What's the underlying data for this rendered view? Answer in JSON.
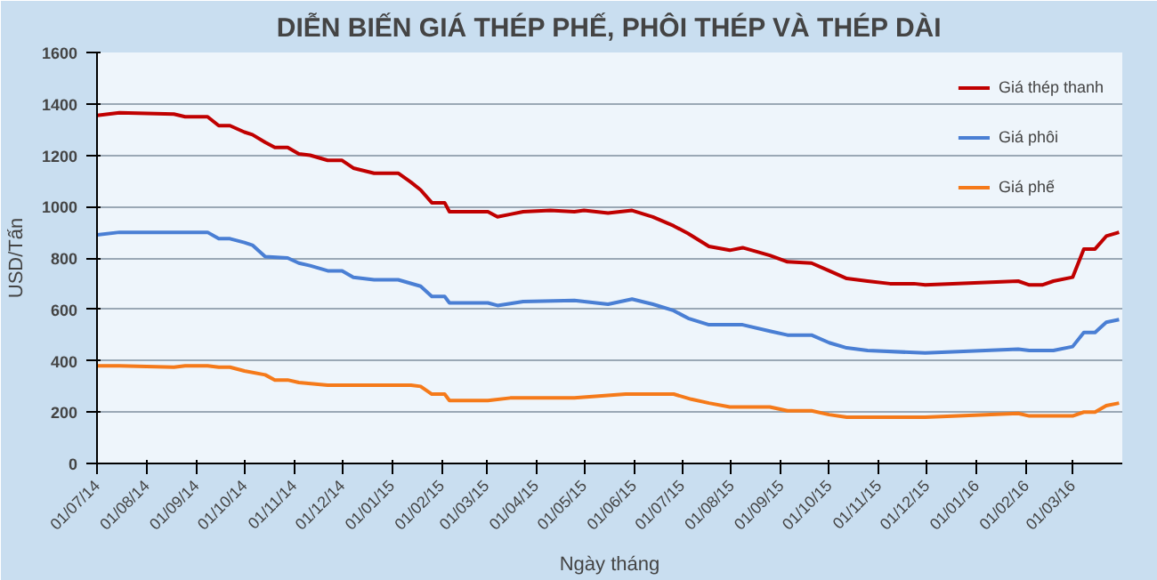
{
  "chart_data": {
    "type": "line",
    "title": "DIỄN BIẾN GIÁ THÉP PHẾ, PHÔI THÉP VÀ THÉP DÀI",
    "xlabel": "Ngày tháng",
    "ylabel": "USD/Tấn",
    "xlim": [
      "2014-07-01",
      "2016-04-01"
    ],
    "xticks": [
      {
        "value": "2014-07-01",
        "label": "01/07/14"
      },
      {
        "value": "2014-08-01",
        "label": "01/08/14"
      },
      {
        "value": "2014-09-01",
        "label": "01/09/14"
      },
      {
        "value": "2014-10-01",
        "label": "01/10/14"
      },
      {
        "value": "2014-11-01",
        "label": "01/11/14"
      },
      {
        "value": "2014-12-01",
        "label": "01/12/14"
      },
      {
        "value": "2015-01-01",
        "label": "01/01/15"
      },
      {
        "value": "2015-02-01",
        "label": "01/02/15"
      },
      {
        "value": "2015-03-01",
        "label": "01/03/15"
      },
      {
        "value": "2015-04-01",
        "label": "01/04/15"
      },
      {
        "value": "2015-05-01",
        "label": "01/05/15"
      },
      {
        "value": "2015-06-01",
        "label": "01/06/15"
      },
      {
        "value": "2015-07-01",
        "label": "01/07/15"
      },
      {
        "value": "2015-08-01",
        "label": "01/08/15"
      },
      {
        "value": "2015-09-01",
        "label": "01/09/15"
      },
      {
        "value": "2015-10-01",
        "label": "01/10/15"
      },
      {
        "value": "2015-11-01",
        "label": "01/11/15"
      },
      {
        "value": "2015-12-01",
        "label": "01/12/15"
      },
      {
        "value": "2016-01-01",
        "label": "01/01/16"
      },
      {
        "value": "2016-02-01",
        "label": "01/02/16"
      },
      {
        "value": "2016-03-01",
        "label": "01/03/16"
      }
    ],
    "ylim": [
      0,
      1600
    ],
    "yticks": [
      0,
      200,
      400,
      600,
      800,
      1000,
      1200,
      1400,
      1600
    ],
    "grid": "y",
    "legend": "top right",
    "marker": "none",
    "line_style": "solid",
    "series": [
      {
        "name": "Giá thép thanh",
        "color": "#c00000",
        "x": [
          "2014-07-01",
          "2014-07-15",
          "2014-08-18",
          "2014-08-25",
          "2014-09-08",
          "2014-09-15",
          "2014-09-22",
          "2014-10-01",
          "2014-10-06",
          "2014-10-14",
          "2014-10-20",
          "2014-10-28",
          "2014-11-04",
          "2014-11-11",
          "2014-11-22",
          "2014-12-01",
          "2014-12-08",
          "2014-12-21",
          "2015-01-05",
          "2015-01-13",
          "2015-01-19",
          "2015-01-26",
          "2015-02-03",
          "2015-02-06",
          "2015-03-02",
          "2015-03-08",
          "2015-03-16",
          "2015-03-24",
          "2015-04-10",
          "2015-04-25",
          "2015-05-01",
          "2015-05-16",
          "2015-05-31",
          "2015-06-13",
          "2015-06-26",
          "2015-07-05",
          "2015-07-18",
          "2015-07-31",
          "2015-08-08",
          "2015-08-25",
          "2015-09-05",
          "2015-09-20",
          "2015-10-01",
          "2015-10-12",
          "2015-10-25",
          "2015-11-08",
          "2015-11-23",
          "2015-11-30",
          "2016-01-27",
          "2016-02-03",
          "2016-02-11",
          "2016-02-18",
          "2016-03-01",
          "2016-03-08",
          "2016-03-15",
          "2016-03-22",
          "2016-03-30"
        ],
        "values": [
          1355,
          1365,
          1360,
          1350,
          1350,
          1315,
          1315,
          1290,
          1280,
          1250,
          1230,
          1230,
          1205,
          1200,
          1180,
          1180,
          1150,
          1130,
          1130,
          1095,
          1065,
          1015,
          1015,
          980,
          980,
          960,
          970,
          980,
          985,
          980,
          985,
          975,
          985,
          960,
          925,
          895,
          845,
          830,
          840,
          810,
          785,
          780,
          750,
          720,
          710,
          700,
          700,
          695,
          710,
          695,
          695,
          710,
          725,
          835,
          835,
          885,
          900
        ]
      },
      {
        "name": "Giá phôi",
        "color": "#4a7fd4",
        "x": [
          "2014-07-01",
          "2014-07-15",
          "2014-09-08",
          "2014-09-15",
          "2014-09-22",
          "2014-10-01",
          "2014-10-06",
          "2014-10-14",
          "2014-10-28",
          "2014-11-04",
          "2014-11-11",
          "2014-11-22",
          "2014-12-01",
          "2014-12-08",
          "2014-12-21",
          "2015-01-05",
          "2015-01-19",
          "2015-01-26",
          "2015-02-03",
          "2015-02-06",
          "2015-03-02",
          "2015-03-08",
          "2015-03-24",
          "2015-04-25",
          "2015-05-16",
          "2015-05-31",
          "2015-06-13",
          "2015-06-26",
          "2015-07-05",
          "2015-07-18",
          "2015-08-08",
          "2015-08-25",
          "2015-09-05",
          "2015-09-20",
          "2015-10-01",
          "2015-10-12",
          "2015-10-25",
          "2015-11-30",
          "2016-01-27",
          "2016-02-03",
          "2016-02-18",
          "2016-03-01",
          "2016-03-08",
          "2016-03-15",
          "2016-03-22",
          "2016-03-30"
        ],
        "values": [
          890,
          900,
          900,
          875,
          875,
          860,
          850,
          805,
          800,
          780,
          770,
          750,
          750,
          725,
          715,
          715,
          690,
          650,
          650,
          625,
          625,
          615,
          630,
          635,
          620,
          640,
          620,
          595,
          565,
          540,
          540,
          515,
          500,
          500,
          470,
          450,
          440,
          430,
          445,
          440,
          440,
          455,
          510,
          510,
          550,
          560
        ]
      },
      {
        "name": "Giá phế",
        "color": "#f57a1a",
        "x": [
          "2014-07-01",
          "2014-07-15",
          "2014-08-18",
          "2014-08-25",
          "2014-09-08",
          "2014-09-15",
          "2014-09-22",
          "2014-10-01",
          "2014-10-14",
          "2014-10-20",
          "2014-10-28",
          "2014-11-04",
          "2014-11-22",
          "2015-01-13",
          "2015-01-19",
          "2015-01-26",
          "2015-02-03",
          "2015-02-06",
          "2015-03-02",
          "2015-03-16",
          "2015-04-25",
          "2015-05-27",
          "2015-06-26",
          "2015-07-07",
          "2015-07-18",
          "2015-07-31",
          "2015-08-25",
          "2015-09-05",
          "2015-09-20",
          "2015-10-01",
          "2015-10-12",
          "2015-11-30",
          "2016-01-27",
          "2016-02-03",
          "2016-03-01",
          "2016-03-08",
          "2016-03-15",
          "2016-03-22",
          "2016-03-30"
        ],
        "values": [
          380,
          380,
          375,
          380,
          380,
          375,
          375,
          360,
          345,
          325,
          325,
          315,
          305,
          305,
          300,
          270,
          270,
          245,
          245,
          255,
          255,
          270,
          270,
          250,
          235,
          220,
          220,
          205,
          205,
          190,
          180,
          180,
          195,
          185,
          185,
          200,
          200,
          225,
          235
        ]
      }
    ]
  }
}
